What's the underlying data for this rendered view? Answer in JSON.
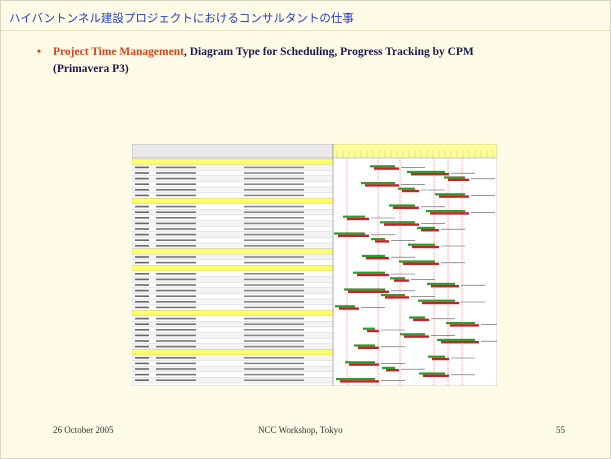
{
  "header": {
    "title": "ハイバントンネル建設プロジェクトにおけるコンサルタントの仕事"
  },
  "bullet": {
    "highlight": "Project Time Management",
    "text": ", Diagram Type for Scheduling, Progress Tracking by CPM (Primavera P3)"
  },
  "footer": {
    "date": "26 October 2005",
    "event": "NCC Workshop, Tokyo",
    "page": "55"
  }
}
